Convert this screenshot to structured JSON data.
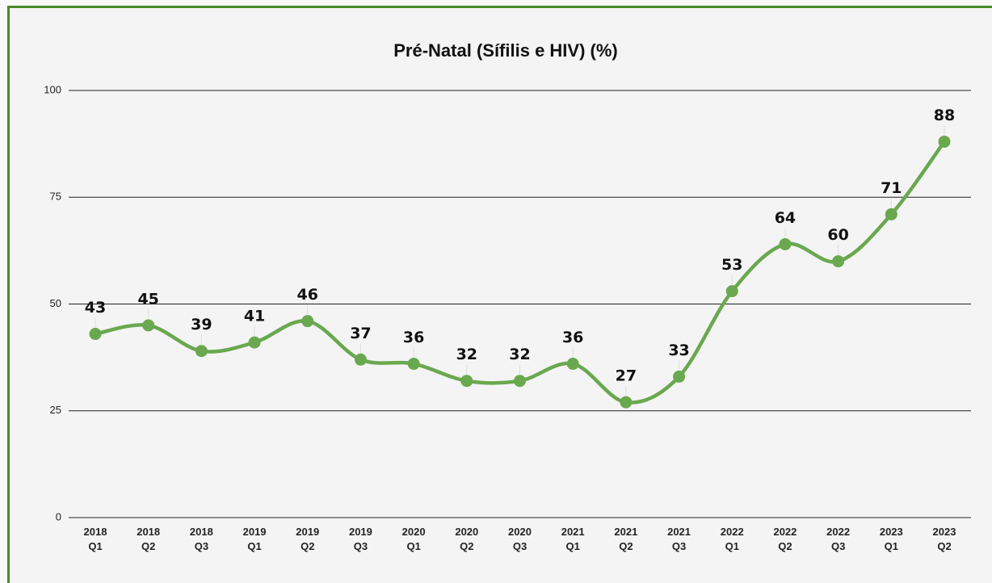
{
  "chart_data": {
    "type": "line",
    "title": "Pré-Natal (Sífilis e HIV) (%)",
    "categories": [
      [
        "2018",
        "Q1"
      ],
      [
        "2018",
        "Q2"
      ],
      [
        "2018",
        "Q3"
      ],
      [
        "2019",
        "Q1"
      ],
      [
        "2019",
        "Q2"
      ],
      [
        "2019",
        "Q3"
      ],
      [
        "2020",
        "Q1"
      ],
      [
        "2020",
        "Q2"
      ],
      [
        "2020",
        "Q3"
      ],
      [
        "2021",
        "Q1"
      ],
      [
        "2021",
        "Q2"
      ],
      [
        "2021",
        "Q3"
      ],
      [
        "2022",
        "Q1"
      ],
      [
        "2022",
        "Q2"
      ],
      [
        "2022",
        "Q3"
      ],
      [
        "2023",
        "Q1"
      ],
      [
        "2023",
        "Q2"
      ]
    ],
    "values": [
      43,
      45,
      39,
      41,
      46,
      37,
      36,
      32,
      32,
      36,
      27,
      33,
      53,
      64,
      60,
      71,
      88
    ],
    "color": "#6aa84f",
    "ylim": [
      0,
      100
    ],
    "yticks": [
      0,
      25,
      50,
      75,
      100
    ],
    "grid": true
  }
}
